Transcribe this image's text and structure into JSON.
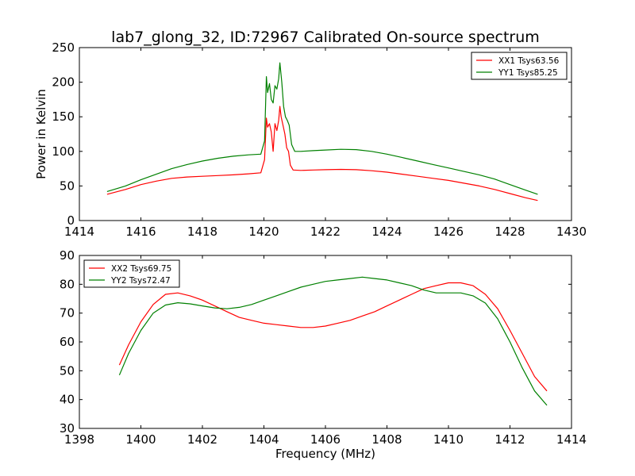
{
  "title": "lab7_glong_32, ID:72967 Calibrated On-source spectrum",
  "chart_data": [
    {
      "type": "line",
      "ylabel": "Power in Kelvin",
      "xlabel": "",
      "xlim": [
        1414,
        1430
      ],
      "ylim": [
        0,
        250
      ],
      "xticks": [
        1414,
        1416,
        1418,
        1420,
        1422,
        1424,
        1426,
        1428,
        1430
      ],
      "yticks": [
        0,
        50,
        100,
        150,
        200,
        250
      ],
      "grid": false,
      "legend_position": "top-right",
      "series": [
        {
          "name": "XX1 Tsys63.56",
          "color": "#ff0000",
          "x": [
            1414.9,
            1415.5,
            1416.0,
            1416.5,
            1417.0,
            1417.5,
            1418.0,
            1418.5,
            1419.0,
            1419.5,
            1419.9,
            1420.02,
            1420.08,
            1420.12,
            1420.18,
            1420.24,
            1420.3,
            1420.36,
            1420.42,
            1420.48,
            1420.52,
            1420.56,
            1420.62,
            1420.68,
            1420.74,
            1420.8,
            1420.86,
            1420.95,
            1421.2,
            1421.6,
            1422.0,
            1422.5,
            1423.0,
            1423.5,
            1424.0,
            1424.5,
            1425.0,
            1425.5,
            1426.0,
            1426.5,
            1427.0,
            1427.5,
            1428.0,
            1428.5,
            1428.9
          ],
          "y": [
            38,
            45,
            52,
            57,
            61,
            63,
            64,
            65,
            66,
            67.5,
            69,
            88,
            148,
            135,
            140,
            128,
            100,
            140,
            130,
            145,
            165,
            150,
            138,
            125,
            105,
            100,
            80,
            73,
            72.5,
            73,
            73.5,
            74,
            73.5,
            72,
            70,
            67,
            64,
            61,
            58,
            54,
            50,
            45,
            39,
            33,
            29
          ]
        },
        {
          "name": "YY1 Tsys85.25",
          "color": "#008000",
          "x": [
            1414.9,
            1415.5,
            1416.0,
            1416.5,
            1417.0,
            1417.5,
            1418.0,
            1418.5,
            1419.0,
            1419.5,
            1419.9,
            1420.02,
            1420.08,
            1420.12,
            1420.18,
            1420.24,
            1420.3,
            1420.36,
            1420.42,
            1420.48,
            1420.52,
            1420.58,
            1420.64,
            1420.7,
            1420.76,
            1420.82,
            1420.9,
            1421.0,
            1421.2,
            1421.6,
            1422.0,
            1422.5,
            1423.0,
            1423.5,
            1424.0,
            1424.5,
            1425.0,
            1425.5,
            1426.0,
            1426.5,
            1427.0,
            1427.5,
            1428.0,
            1428.5,
            1428.9
          ],
          "y": [
            42,
            50,
            59,
            67,
            75,
            81,
            86,
            90,
            93,
            95,
            96,
            115,
            208,
            185,
            198,
            175,
            170,
            195,
            190,
            205,
            228,
            200,
            165,
            150,
            145,
            138,
            110,
            100,
            100,
            101,
            102,
            103,
            102.5,
            100,
            96,
            91,
            86,
            81,
            76,
            71,
            66,
            60,
            52,
            44,
            38
          ]
        }
      ]
    },
    {
      "type": "line",
      "ylabel": "",
      "xlabel": "Frequency (MHz)",
      "xlim": [
        1398,
        1414
      ],
      "ylim": [
        30,
        90
      ],
      "xticks": [
        1398,
        1400,
        1402,
        1404,
        1406,
        1408,
        1410,
        1412,
        1414
      ],
      "yticks": [
        30,
        40,
        50,
        60,
        70,
        80,
        90
      ],
      "grid": false,
      "legend_position": "top-left",
      "series": [
        {
          "name": "XX2 Tsys69.75",
          "color": "#ff0000",
          "x": [
            1399.3,
            1399.6,
            1400.0,
            1400.4,
            1400.8,
            1401.2,
            1401.6,
            1402.0,
            1402.4,
            1402.8,
            1403.2,
            1403.6,
            1404.0,
            1404.4,
            1404.8,
            1405.2,
            1405.6,
            1406.0,
            1406.4,
            1406.8,
            1407.2,
            1407.6,
            1408.0,
            1408.4,
            1408.8,
            1409.2,
            1409.6,
            1410.0,
            1410.4,
            1410.8,
            1411.2,
            1411.6,
            1412.0,
            1412.4,
            1412.8,
            1413.2
          ],
          "y": [
            52,
            59,
            67,
            73,
            76.5,
            77,
            76,
            74.5,
            72.5,
            70.5,
            68.5,
            67.5,
            66.5,
            66,
            65.5,
            65,
            65,
            65.5,
            66.5,
            67.5,
            69,
            70.5,
            72.5,
            74.5,
            76.5,
            78.5,
            79.5,
            80.5,
            80.5,
            79.5,
            76.5,
            71.5,
            64,
            56,
            48,
            43
          ]
        },
        {
          "name": "YY2 Tsys72.47",
          "color": "#008000",
          "x": [
            1399.3,
            1399.6,
            1400.0,
            1400.4,
            1400.8,
            1401.2,
            1401.6,
            1402.0,
            1402.4,
            1402.8,
            1403.2,
            1403.6,
            1404.0,
            1404.4,
            1404.8,
            1405.2,
            1405.6,
            1406.0,
            1406.4,
            1406.8,
            1407.2,
            1407.6,
            1408.0,
            1408.4,
            1408.8,
            1409.2,
            1409.6,
            1410.0,
            1410.4,
            1410.8,
            1411.2,
            1411.6,
            1412.0,
            1412.4,
            1412.8,
            1413.2
          ],
          "y": [
            48.5,
            56,
            64,
            70,
            72.8,
            73.6,
            73.2,
            72.5,
            71.8,
            71.5,
            72,
            73,
            74.5,
            76,
            77.5,
            79,
            80,
            81,
            81.5,
            82,
            82.5,
            82,
            81.5,
            80.5,
            79.5,
            78,
            77,
            77,
            77,
            76,
            73.5,
            68,
            60,
            51,
            43,
            38
          ]
        }
      ]
    }
  ]
}
